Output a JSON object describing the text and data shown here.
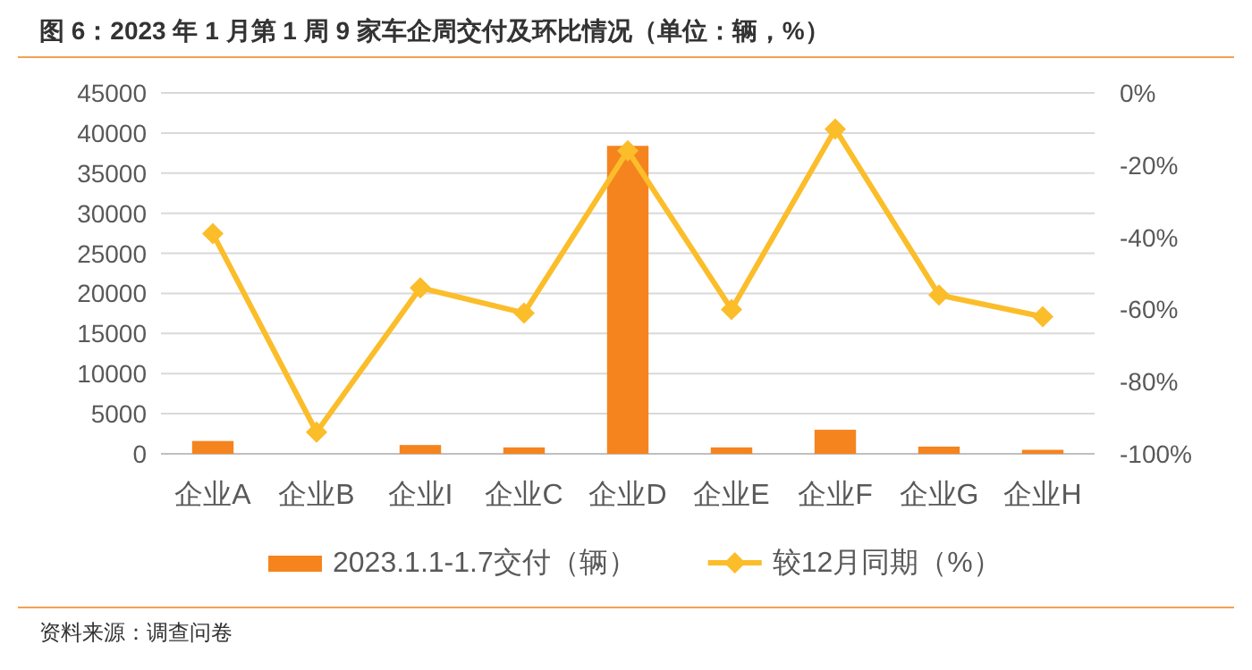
{
  "chart_data": {
    "type": "bar",
    "title": "图 6：2023 年 1 月第 1 周 9 家车企周交付及环比情况（单位：辆，%）",
    "categories": [
      "企业A",
      "企业B",
      "企业I",
      "企业C",
      "企业D",
      "企业E",
      "企业F",
      "企业G",
      "企业H"
    ],
    "series": [
      {
        "name": "2023.1.1-1.7交付（辆）",
        "color": "#f5841f",
        "values": [
          1600,
          0,
          1100,
          800,
          38400,
          800,
          3000,
          900,
          500
        ]
      },
      {
        "name": "较12月同期（%）",
        "type": "line",
        "axis": "y2",
        "color": "#fbbd2a",
        "marker": "diamond",
        "values": [
          -39,
          -94,
          -54,
          -61,
          -16,
          -60,
          -10,
          -56,
          -62
        ]
      }
    ],
    "ylim": [
      0,
      45000
    ],
    "yticks": [
      0,
      5000,
      10000,
      15000,
      20000,
      25000,
      30000,
      35000,
      40000,
      45000
    ],
    "y2lim": [
      -100,
      0
    ],
    "y2ticks": [
      {
        "value": 0,
        "label": "0%"
      },
      {
        "value": -20,
        "label": "-20%"
      },
      {
        "value": -40,
        "label": "-40%"
      },
      {
        "value": -60,
        "label": "-60%"
      },
      {
        "value": -80,
        "label": "-80%"
      },
      {
        "value": -100,
        "label": "-100%"
      }
    ],
    "grid": "y",
    "legend": "bottom",
    "annotations": [
      "资料来源：调查问卷"
    ]
  }
}
